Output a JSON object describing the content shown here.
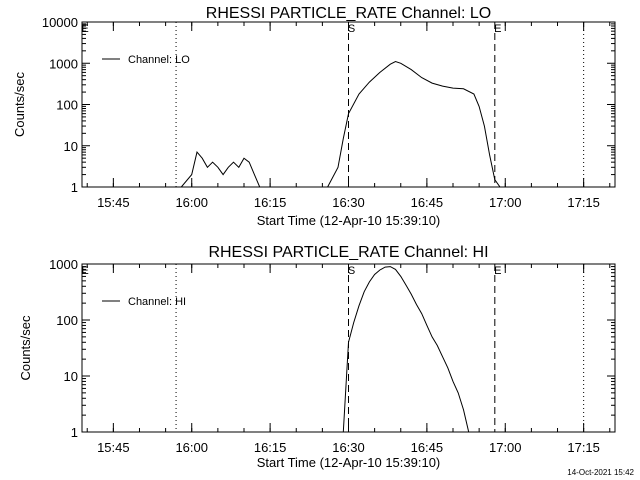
{
  "chart_data": [
    {
      "type": "line",
      "title": "RHESSI PARTICLE_RATE Channel: LO",
      "xlabel": "Start Time (12-Apr-10 15:39:10)",
      "ylabel": "Counts/sec",
      "yscale": "log",
      "ylim": [
        1,
        10000
      ],
      "xlim": [
        "15:39",
        "17:21"
      ],
      "x_ticks": [
        "15:45",
        "16:00",
        "16:15",
        "16:30",
        "16:45",
        "17:00",
        "17:15"
      ],
      "y_ticks": [
        "1",
        "10",
        "100",
        "1000",
        "10000"
      ],
      "legend": {
        "position": "top-left",
        "label": "Channel: LO"
      },
      "markers": [
        {
          "time": "15:39",
          "style": "dotted",
          "label": "E"
        },
        {
          "time": "15:57",
          "style": "dotted",
          "label": ""
        },
        {
          "time": "16:30",
          "style": "dashed",
          "label": "S"
        },
        {
          "time": "16:58",
          "style": "dashed",
          "label": "E"
        },
        {
          "time": "17:15",
          "style": "dotted",
          "label": ""
        }
      ],
      "series": [
        {
          "x": [
            "15:42",
            "15:44",
            "15:46",
            "15:48",
            "15:50",
            "15:53",
            "15:56",
            "15:58",
            "16:00",
            "16:01",
            "16:02",
            "16:03",
            "16:04",
            "16:05",
            "16:06",
            "16:07",
            "16:08",
            "16:09",
            "16:10",
            "16:11",
            "16:12",
            "16:13",
            "16:14",
            "16:15",
            "16:16",
            "16:18",
            "16:20",
            "16:22",
            "16:24",
            "16:26",
            "16:28",
            "16:29",
            "16:30",
            "16:32",
            "16:34",
            "16:36",
            "16:38",
            "16:39",
            "16:40",
            "16:42",
            "16:44",
            "16:46",
            "16:48",
            "16:50",
            "16:52",
            "16:54",
            "16:55",
            "16:56",
            "16:57",
            "16:58",
            "16:59",
            "17:00",
            "17:02",
            "17:04",
            "17:06",
            "17:08",
            "17:10",
            "17:12",
            "17:14",
            "17:16",
            "17:18"
          ],
          "y": [
            1,
            1,
            1,
            1,
            1,
            1,
            1,
            1,
            2,
            7,
            5,
            3,
            4,
            3,
            2,
            3,
            4,
            3,
            5,
            4,
            2,
            1,
            1,
            1,
            1,
            1,
            1,
            1,
            1,
            1,
            3,
            15,
            60,
            180,
            350,
            600,
            950,
            1100,
            1000,
            700,
            450,
            330,
            280,
            250,
            240,
            180,
            90,
            30,
            6,
            1.5,
            1,
            1,
            1,
            1,
            1,
            1,
            1,
            1,
            1,
            1,
            1
          ]
        }
      ]
    },
    {
      "type": "line",
      "title": "RHESSI PARTICLE_RATE Channel: HI",
      "xlabel": "Start Time (12-Apr-10 15:39:10)",
      "ylabel": "Counts/sec",
      "yscale": "log",
      "ylim": [
        1,
        1000
      ],
      "xlim": [
        "15:39",
        "17:21"
      ],
      "x_ticks": [
        "15:45",
        "16:00",
        "16:15",
        "16:30",
        "16:45",
        "17:00",
        "17:15"
      ],
      "y_ticks": [
        "1",
        "10",
        "100",
        "1000"
      ],
      "legend": {
        "position": "top-left",
        "label": "Channel: HI"
      },
      "markers": [
        {
          "time": "15:39",
          "style": "dotted",
          "label": "E"
        },
        {
          "time": "15:57",
          "style": "dotted",
          "label": ""
        },
        {
          "time": "16:30",
          "style": "dashed",
          "label": "S"
        },
        {
          "time": "16:58",
          "style": "dashed",
          "label": "E"
        },
        {
          "time": "17:15",
          "style": "dotted",
          "label": ""
        }
      ],
      "series": [
        {
          "x": [
            "16:29",
            "16:30",
            "16:31",
            "16:32",
            "16:33",
            "16:34",
            "16:35",
            "16:36",
            "16:37",
            "16:38",
            "16:39",
            "16:40",
            "16:41",
            "16:42",
            "16:43",
            "16:44",
            "16:45",
            "16:46",
            "16:47",
            "16:48",
            "16:49",
            "16:50",
            "16:51",
            "16:52",
            "16:53"
          ],
          "y": [
            1,
            40,
            90,
            180,
            320,
            480,
            650,
            780,
            880,
            900,
            800,
            600,
            420,
            290,
            190,
            130,
            80,
            50,
            35,
            22,
            14,
            8,
            5,
            2.5,
            1
          ]
        }
      ]
    }
  ],
  "footer": {
    "timestamp": "14-Oct-2021 15:42"
  }
}
